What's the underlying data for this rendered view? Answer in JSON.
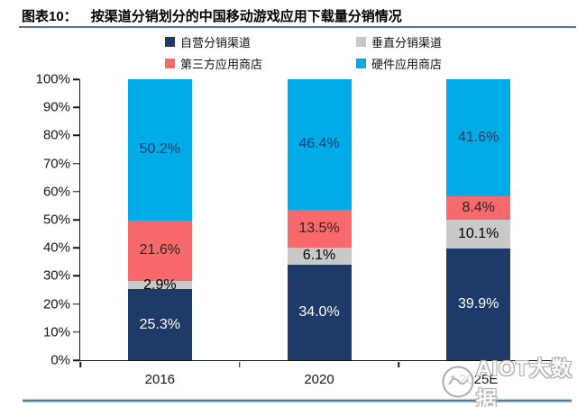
{
  "header": {
    "label": "图表10：",
    "title": "按渠道分销划分的中国移动游戏应用下载量分销情况"
  },
  "chart_data": {
    "type": "bar",
    "stacked": true,
    "title": "按渠道分销划分的中国移动游戏应用下载量分销情况",
    "categories": [
      "2016",
      "2020",
      "2025E"
    ],
    "series": [
      {
        "name": "自营分销渠道",
        "color": "#1D3A68",
        "label_color": "#FFFFFF",
        "values": [
          25.3,
          34.0,
          39.9
        ]
      },
      {
        "name": "垂直分销渠道",
        "color": "#C9C9C9",
        "label_color": "#000000",
        "values": [
          2.9,
          6.1,
          10.1
        ]
      },
      {
        "name": "第三方应用商店",
        "color": "#F8696B",
        "label_color": "#23262E",
        "values": [
          21.6,
          13.5,
          8.4
        ]
      },
      {
        "name": "硬件应用商店",
        "color": "#00ACE8",
        "label_color": "#1D3A68",
        "values": [
          50.2,
          46.4,
          41.6
        ]
      }
    ],
    "y_ticks": [
      "100%",
      "90%",
      "80%",
      "70%",
      "60%",
      "50%",
      "40%",
      "30%",
      "20%",
      "10%",
      "0%"
    ],
    "ylim": [
      0,
      100
    ],
    "unit": "%",
    "grid": false,
    "legend_position": "top"
  },
  "watermark": {
    "text": "AIOT大数据"
  }
}
